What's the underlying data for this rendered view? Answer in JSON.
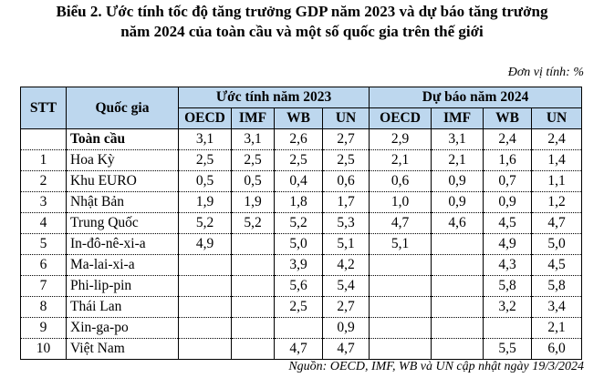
{
  "title_line1": "Biểu 2. Ước tính tốc độ tăng trưởng GDP năm 2023 và dự báo tăng trưởng",
  "title_line2": "năm 2024 của toàn cầu và một số quốc gia trên thế giới",
  "unit_note": "Đơn vị tính: %",
  "headers": {
    "stt": "STT",
    "country": "Quốc gia",
    "group_2023": "Ước tính năm 2023",
    "group_2024": "Dự báo năm 2024",
    "sub": [
      "OECD",
      "IMF",
      "WB",
      "UN",
      "OECD",
      "IMF",
      "WB",
      "UN"
    ]
  },
  "rows": [
    {
      "stt": "",
      "country": "Toàn cầu",
      "v": [
        "3,1",
        "3,1",
        "2,6",
        "2,7",
        "2,9",
        "3,1",
        "2,4",
        "2,4"
      ]
    },
    {
      "stt": "1",
      "country": "Hoa Kỳ",
      "v": [
        "2,5",
        "2,5",
        "2,5",
        "2,5",
        "2,1",
        "2,1",
        "1,6",
        "1,4"
      ]
    },
    {
      "stt": "2",
      "country": "Khu EURO",
      "v": [
        "0,5",
        "0,5",
        "0,4",
        "0,6",
        "0,6",
        "0,9",
        "0,7",
        "1,1"
      ]
    },
    {
      "stt": "3",
      "country": "Nhật Bản",
      "v": [
        "1,9",
        "1,9",
        "1,8",
        "1,7",
        "1,0",
        "0,9",
        "0,9",
        "1,2"
      ]
    },
    {
      "stt": "4",
      "country": "Trung Quốc",
      "v": [
        "5,2",
        "5,2",
        "5,2",
        "5,3",
        "4,7",
        "4,6",
        "4,5",
        "4,7"
      ]
    },
    {
      "stt": "5",
      "country": "In-đô-nê-xi-a",
      "v": [
        "4,9",
        "",
        "5,0",
        "5,1",
        "5,1",
        "",
        "4,9",
        "5,0"
      ]
    },
    {
      "stt": "6",
      "country": "Ma-lai-xi-a",
      "v": [
        "",
        "",
        "3,9",
        "4,2",
        "",
        "",
        "4,3",
        "4,5"
      ]
    },
    {
      "stt": "7",
      "country": "Phi-lip-pin",
      "v": [
        "",
        "",
        "5,6",
        "5,4",
        "",
        "",
        "5,8",
        "5,8"
      ]
    },
    {
      "stt": "8",
      "country": "Thái Lan",
      "v": [
        "",
        "",
        "2,5",
        "2,7",
        "",
        "",
        "3,2",
        "3,4"
      ]
    },
    {
      "stt": "9",
      "country": "Xin-ga-po",
      "v": [
        "",
        "",
        "",
        "0,9",
        "",
        "",
        "",
        "2,1"
      ]
    },
    {
      "stt": "10",
      "country": "Việt Nam",
      "v": [
        "",
        "",
        "4,7",
        "4,7",
        "",
        "",
        "5,5",
        "6,0"
      ]
    }
  ],
  "source_note": "Nguồn: OECD, IMF, WB và UN cập nhật ngày 19/3/2024",
  "colors": {
    "header_bg": "#bdd7ee"
  }
}
